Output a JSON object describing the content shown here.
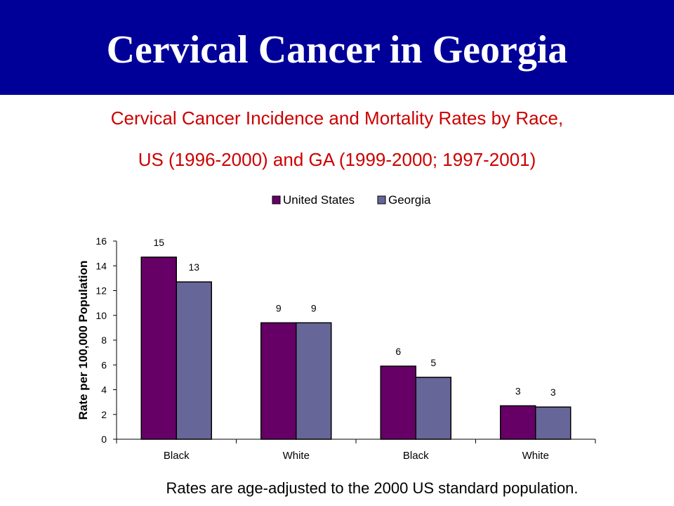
{
  "slide": {
    "title": "Cervical Cancer in Georgia",
    "banner_color": "#000099"
  },
  "chart_data": {
    "type": "bar",
    "title": "Cervical Cancer Incidence and Mortality Rates by Race,",
    "subtitle": "US (1996-2000) and GA (1999-2000; 1997-2001)",
    "title_color": "#cc0000",
    "ylabel": "Rate per 100,000 Population",
    "xlabel": "",
    "ylim": [
      0,
      16
    ],
    "yticks": [
      0,
      2,
      4,
      6,
      8,
      10,
      12,
      14,
      16
    ],
    "categories": [
      "Black",
      "White",
      "Black",
      "White"
    ],
    "series": [
      {
        "name": "United States",
        "color": "#660066",
        "values": [
          14.7,
          9.4,
          5.9,
          2.7
        ],
        "labels": [
          "15",
          "9",
          "6",
          "3"
        ]
      },
      {
        "name": "Georgia",
        "color": "#666699",
        "values": [
          12.7,
          9.4,
          5.0,
          2.6
        ],
        "labels": [
          "13",
          "9",
          "5",
          "3"
        ]
      }
    ],
    "legend": "top",
    "grid": false,
    "footnote": "Rates are age-adjusted to the 2000 US standard population."
  }
}
